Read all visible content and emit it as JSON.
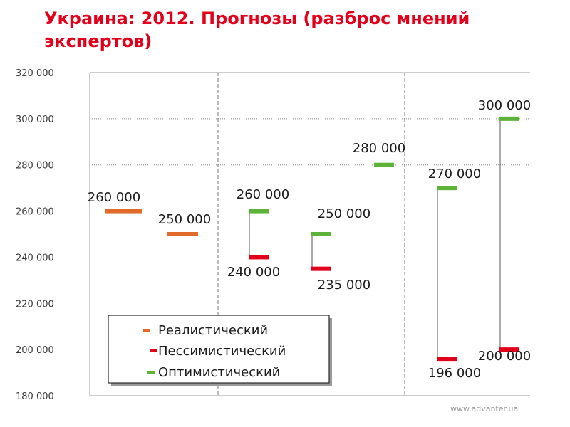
{
  "page": {
    "title": "Украина: 2012. Прогнозы (разброс мнений экспертов)",
    "footer": "www.advanter.ua"
  },
  "colors": {
    "title": "#e3001b",
    "realistic": "#e26b2a",
    "pessimistic": "#e3001b",
    "optimistic": "#5db33a"
  },
  "chart_data": {
    "type": "range",
    "ylim": [
      180000,
      320000
    ],
    "ytick_values": [
      180000,
      200000,
      220000,
      240000,
      260000,
      280000,
      300000,
      320000
    ],
    "ytick_labels": [
      "180 000",
      "200 000",
      "220 000",
      "240 000",
      "260 000",
      "280 000",
      "300 000",
      "320 000"
    ],
    "grid": {
      "horizontal_dotted_at": [
        300000,
        280000
      ],
      "vertical_dashed_groups": true
    },
    "legend": {
      "placement": "bottom-left",
      "entries": [
        {
          "key": "realistic",
          "label": "Реалистический"
        },
        {
          "key": "pessimistic",
          "label": "Пессимистический"
        },
        {
          "key": "optimistic",
          "label": "Оптимистический"
        }
      ]
    },
    "groups": [
      {
        "markers": [
          {
            "key": "realistic",
            "value": 260000,
            "label": "260 000"
          },
          {
            "key": "realistic",
            "value": 250000,
            "label": "250 000"
          }
        ]
      },
      {
        "markers": [
          {
            "key": "pessimistic",
            "value": 240000,
            "label": "240 000"
          },
          {
            "key": "optimistic",
            "value": 260000,
            "label": "260 000"
          },
          {
            "key": "pessimistic",
            "value": 235000,
            "label": "235 000"
          },
          {
            "key": "optimistic",
            "value": 250000,
            "label": "250 000"
          },
          {
            "key": "optimistic",
            "value": 280000,
            "label": "280 000"
          }
        ]
      },
      {
        "markers": [
          {
            "key": "pessimistic",
            "value": 196000,
            "label": "196 000"
          },
          {
            "key": "optimistic",
            "value": 270000,
            "label": "270 000"
          },
          {
            "key": "pessimistic",
            "value": 200000,
            "label": "200 000"
          },
          {
            "key": "optimistic",
            "value": 300000,
            "label": "300 000"
          }
        ]
      }
    ]
  }
}
